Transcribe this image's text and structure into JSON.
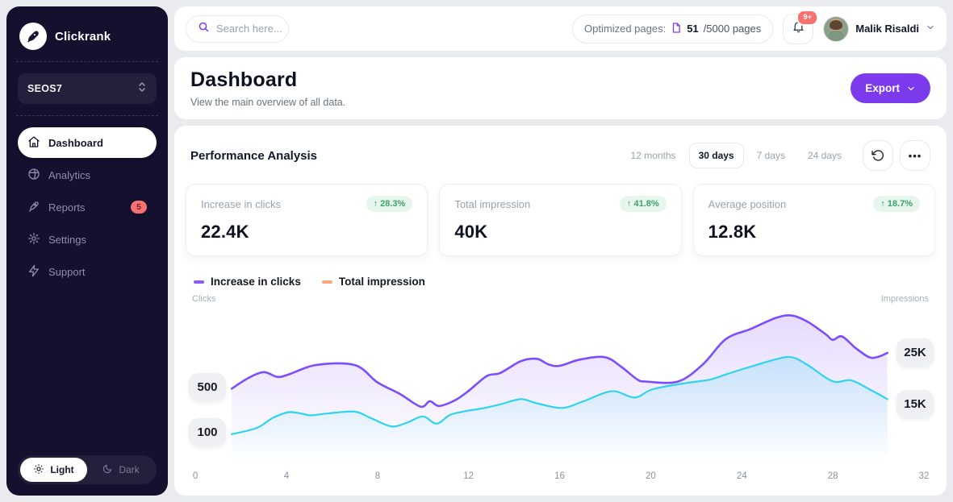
{
  "brand": {
    "name": "Clickrank"
  },
  "sidebar": {
    "workspace": "SEOS7",
    "items": [
      {
        "label": "Dashboard",
        "active": true
      },
      {
        "label": "Analytics",
        "active": false
      },
      {
        "label": "Reports",
        "active": false,
        "badge": "5"
      },
      {
        "label": "Settings",
        "active": false
      },
      {
        "label": "Support",
        "active": false
      }
    ],
    "theme": {
      "light": "Light",
      "dark": "Dark"
    }
  },
  "topbar": {
    "search_placeholder": "Search here...",
    "optimized_label": "Optimized pages:",
    "optimized_value": "51",
    "optimized_total": "/5000 pages",
    "notification_badge": "9+",
    "user_name": "Malik Risaldi"
  },
  "page_header": {
    "title": "Dashboard",
    "subtitle": "View the main overview of all data.",
    "export_label": "Export"
  },
  "panel": {
    "title": "Performance Analysis",
    "ranges": [
      "12 months",
      "30 days",
      "7 days",
      "24 days"
    ],
    "active_range": "30 days"
  },
  "stats": [
    {
      "label": "Increase in clicks",
      "value": "22.4K",
      "delta": "↑ 28.3%"
    },
    {
      "label": "Total impression",
      "value": "40K",
      "delta": "↑ 41.8%"
    },
    {
      "label": "Average position",
      "value": "12.8K",
      "delta": "↑ 18.7%"
    }
  ],
  "colors": {
    "accent": "#7c3aed",
    "sidebar_bg": "#14102e",
    "badge_red": "#f8716f",
    "positive_bg": "#e7f6ec",
    "positive_text": "#3ea06c"
  },
  "chart_data": {
    "type": "line",
    "title": "Performance Analysis",
    "ylabel_left": "Clicks",
    "ylabel_right": "Impressions",
    "x_ticks": [
      "0",
      "4",
      "8",
      "12",
      "16",
      "20",
      "24",
      "28",
      "32"
    ],
    "x_range": [
      0,
      32
    ],
    "left_ticks": [
      "500",
      "100"
    ],
    "right_ticks": [
      "25K",
      "15K"
    ],
    "left_scale": {
      "min": 0,
      "max": 800
    },
    "right_scale": {
      "min": 4000,
      "max": 34000
    },
    "grid": false,
    "legend_position": "top-left",
    "legend": [
      {
        "label": "Increase in clicks",
        "color": "#8b5cf6"
      },
      {
        "label": "Total impression",
        "color": "#f9a87c"
      }
    ],
    "series": [
      {
        "name": "Increase in clicks",
        "axis": "left",
        "color": "#7c4dff",
        "points": [
          [
            1.6,
            368
          ],
          [
            2.3,
            420
          ],
          [
            3,
            452
          ],
          [
            3.6,
            428
          ],
          [
            4.1,
            440
          ],
          [
            5.3,
            488
          ],
          [
            7,
            488
          ],
          [
            8,
            400
          ],
          [
            9,
            340
          ],
          [
            9.9,
            276
          ],
          [
            10.3,
            304
          ],
          [
            10.7,
            280
          ],
          [
            11.4,
            308
          ],
          [
            12,
            356
          ],
          [
            12.8,
            432
          ],
          [
            13.4,
            448
          ],
          [
            14.3,
            508
          ],
          [
            15,
            520
          ],
          [
            15.5,
            492
          ],
          [
            16,
            484
          ],
          [
            16.9,
            516
          ],
          [
            18,
            528
          ],
          [
            18.7,
            480
          ],
          [
            19.4,
            416
          ],
          [
            19.8,
            404
          ],
          [
            21.2,
            404
          ],
          [
            22.3,
            492
          ],
          [
            23.3,
            620
          ],
          [
            24.4,
            672
          ],
          [
            25.5,
            728
          ],
          [
            26.2,
            740
          ],
          [
            26.9,
            708
          ],
          [
            27.7,
            644
          ],
          [
            28,
            616
          ],
          [
            28.4,
            634
          ],
          [
            29,
            575
          ],
          [
            29.6,
            528
          ],
          [
            30,
            530
          ],
          [
            30.4,
            550
          ]
        ]
      },
      {
        "name": "Total impression",
        "axis": "right",
        "color": "#2ed3ee",
        "points": [
          [
            1.6,
            9100
          ],
          [
            2.7,
            10300
          ],
          [
            3.4,
            12200
          ],
          [
            4.1,
            13300
          ],
          [
            4.7,
            13000
          ],
          [
            5.1,
            12700
          ],
          [
            5.9,
            13100
          ],
          [
            7,
            13400
          ],
          [
            7.7,
            12200
          ],
          [
            8.6,
            10600
          ],
          [
            9.3,
            11300
          ],
          [
            10,
            12500
          ],
          [
            10.6,
            11100
          ],
          [
            11.2,
            12800
          ],
          [
            12,
            13600
          ],
          [
            12.7,
            14100
          ],
          [
            13.4,
            14800
          ],
          [
            14.3,
            15800
          ],
          [
            15,
            15000
          ],
          [
            16.1,
            14100
          ],
          [
            17,
            15300
          ],
          [
            18.3,
            17300
          ],
          [
            19.3,
            16100
          ],
          [
            20.1,
            17700
          ],
          [
            21.6,
            18900
          ],
          [
            22.6,
            19500
          ],
          [
            23.3,
            20500
          ],
          [
            24.4,
            22000
          ],
          [
            25.5,
            23400
          ],
          [
            26.2,
            23800
          ],
          [
            26.9,
            22300
          ],
          [
            28,
            19200
          ],
          [
            28.8,
            19400
          ],
          [
            29.6,
            17700
          ],
          [
            30.4,
            15800
          ]
        ]
      }
    ]
  }
}
